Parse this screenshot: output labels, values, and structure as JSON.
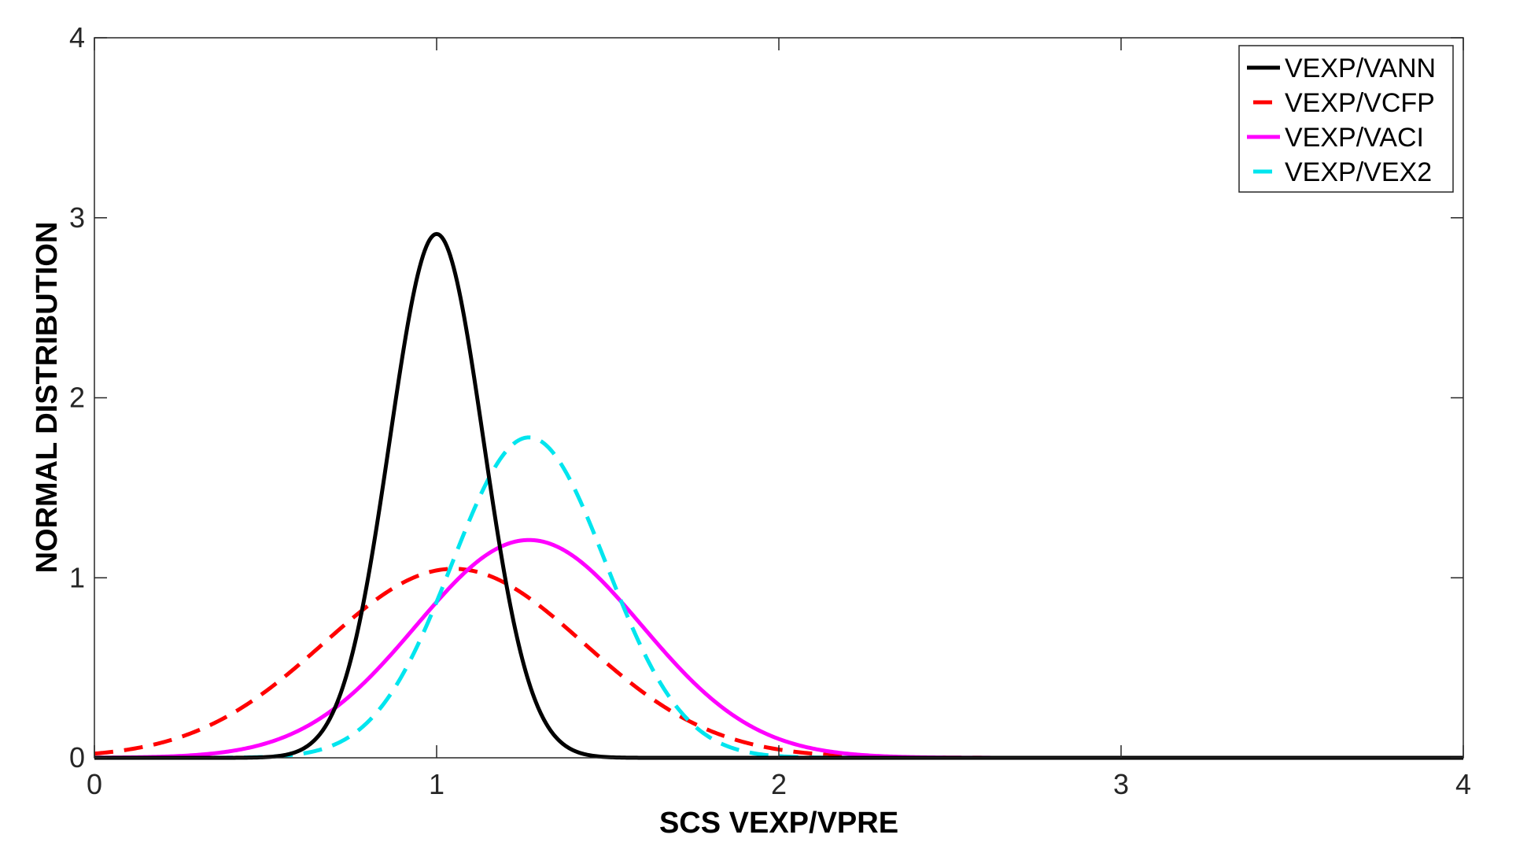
{
  "chart_data": {
    "type": "line",
    "title": "",
    "xlabel": "SCS VEXP/VPRE",
    "ylabel": "NORMAL DISTRIBUTION",
    "xlim": [
      0,
      4
    ],
    "ylim": [
      0,
      4
    ],
    "xticks": [
      0,
      1,
      2,
      3,
      4
    ],
    "yticks": [
      0,
      1,
      2,
      3,
      4
    ],
    "xtick_labels": [
      "0",
      "1",
      "2",
      "3",
      "4"
    ],
    "ytick_labels": [
      "0",
      "1",
      "2",
      "3",
      "4"
    ],
    "grid": false,
    "legend_position": "top-right",
    "x_sample_step": 0.05,
    "series": [
      {
        "name": "VEXP/VANN",
        "color": "#000000",
        "style": "solid",
        "distribution": {
          "mean": 1.0,
          "std": 0.137,
          "peak": 2.91
        }
      },
      {
        "name": "VEXP/VCFP",
        "color": "#ff0000",
        "style": "dashed",
        "distribution": {
          "mean": 1.05,
          "std": 0.38,
          "peak": 1.05
        }
      },
      {
        "name": "VEXP/VACI",
        "color": "#ff00ff",
        "style": "solid",
        "distribution": {
          "mean": 1.27,
          "std": 0.33,
          "peak": 1.21
        }
      },
      {
        "name": "VEXP/VEX2",
        "color": "#00e5ee",
        "style": "dashed",
        "distribution": {
          "mean": 1.27,
          "std": 0.225,
          "peak": 1.78
        }
      }
    ]
  }
}
